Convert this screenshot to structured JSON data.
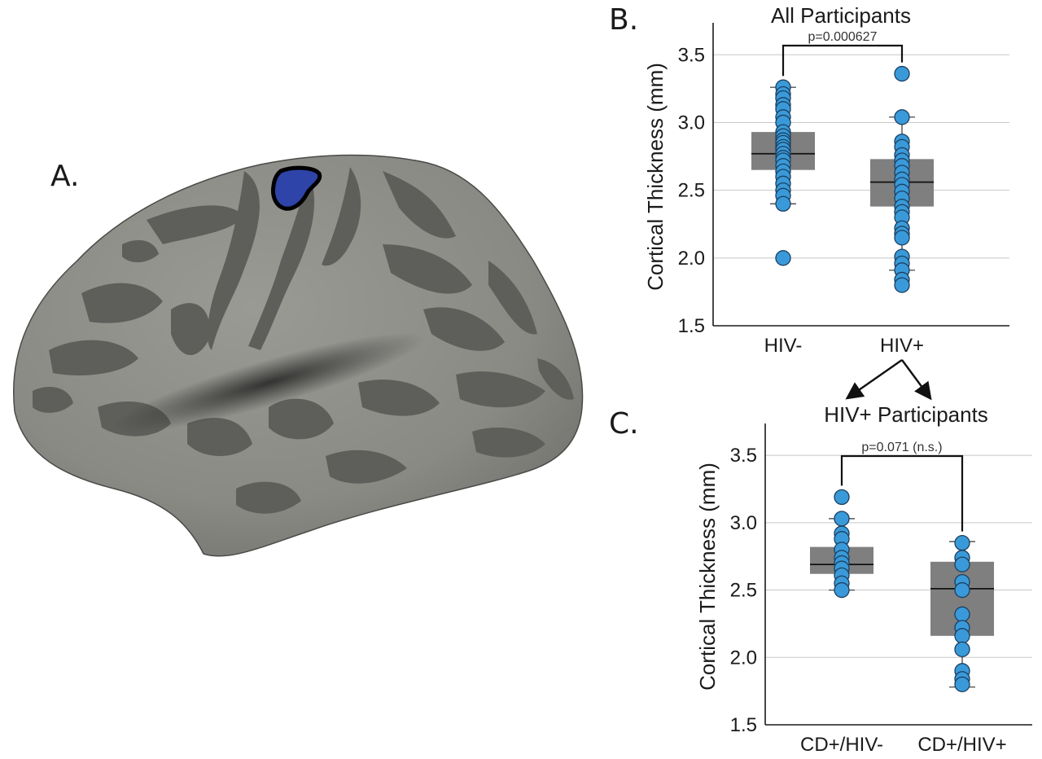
{
  "panel_a": {
    "label": "A.",
    "colors": {
      "surface_light": "#8c8c87",
      "surface_dark": "#5f5f5c",
      "roi_fill": "#2f44a8",
      "roi_outline": "#000000"
    }
  },
  "arrow_split": {
    "heading": "HIV+ Participants"
  },
  "chart_data": [
    {
      "type": "box",
      "panel_label": "B.",
      "title": "All Participants",
      "xlabel": "",
      "ylabel": "Cortical Thickness (mm)",
      "ylim": [
        1.5,
        3.7
      ],
      "yticks": [
        "1.5",
        "2.0",
        "2.5",
        "3.0",
        "3.5"
      ],
      "grid": true,
      "categories": [
        "HIV-",
        "HIV+"
      ],
      "comparison": {
        "text": "p=0.000627",
        "between": [
          0,
          1
        ]
      },
      "groups": [
        {
          "name": "HIV-",
          "q1": 2.65,
          "median": 2.77,
          "q3": 2.93,
          "whisker_low": 2.4,
          "whisker_high": 3.26,
          "points": [
            3.26,
            3.21,
            3.18,
            3.13,
            3.1,
            3.04,
            3.0,
            2.93,
            2.9,
            2.87,
            2.85,
            2.82,
            2.8,
            2.77,
            2.74,
            2.72,
            2.68,
            2.64,
            2.6,
            2.55,
            2.5,
            2.46,
            2.4,
            2.0
          ]
        },
        {
          "name": "HIV+",
          "q1": 2.38,
          "median": 2.56,
          "q3": 2.73,
          "whisker_low": 1.91,
          "whisker_high": 3.04,
          "points": [
            3.36,
            3.04,
            2.86,
            2.82,
            2.76,
            2.72,
            2.68,
            2.63,
            2.58,
            2.54,
            2.49,
            2.44,
            2.38,
            2.34,
            2.3,
            2.22,
            2.18,
            2.15,
            2.01,
            1.96,
            1.91,
            1.84,
            1.8
          ]
        }
      ],
      "colors": {
        "box": "#7f7f7f",
        "points": "#3a9ad9"
      }
    },
    {
      "type": "box",
      "panel_label": "C.",
      "title": "",
      "xlabel": "",
      "ylabel": "Cortical Thickness (mm)",
      "ylim": [
        1.5,
        3.7
      ],
      "yticks": [
        "1.5",
        "2.0",
        "2.5",
        "3.0",
        "3.5"
      ],
      "grid": true,
      "categories": [
        "CD+/HIV-",
        "CD+/HIV+"
      ],
      "comparison": {
        "text": "p=0.071 (n.s.)",
        "between": [
          0,
          1
        ]
      },
      "groups": [
        {
          "name": "CD+/HIV-",
          "q1": 2.62,
          "median": 2.69,
          "q3": 2.82,
          "whisker_low": 2.5,
          "whisker_high": 3.03,
          "points": [
            3.19,
            3.03,
            2.92,
            2.88,
            2.8,
            2.74,
            2.7,
            2.66,
            2.61,
            2.55,
            2.5
          ]
        },
        {
          "name": "CD+/HIV+",
          "q1": 2.16,
          "median": 2.51,
          "q3": 2.71,
          "whisker_low": 1.78,
          "whisker_high": 2.86,
          "points": [
            2.85,
            2.74,
            2.69,
            2.56,
            2.5,
            2.32,
            2.22,
            2.16,
            2.06,
            1.9,
            1.84,
            1.8
          ]
        }
      ],
      "colors": {
        "box": "#7f7f7f",
        "points": "#3a9ad9"
      }
    }
  ]
}
